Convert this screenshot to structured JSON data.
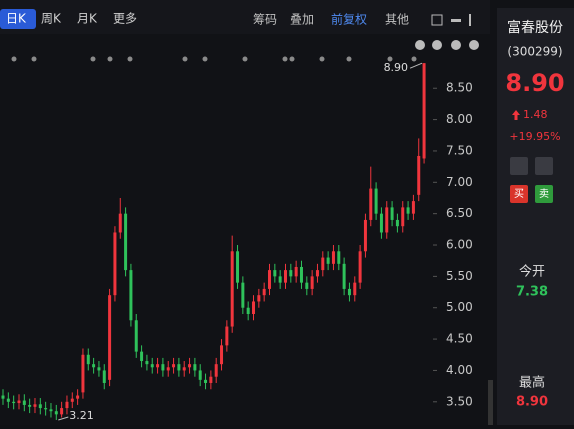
{
  "header": {
    "tabs": [
      "日K",
      "周K",
      "月K",
      "更多"
    ],
    "tools": [
      "筹码",
      "叠加",
      "前复权",
      "其他"
    ]
  },
  "sidebar": {
    "name": "富春股份",
    "code": "(300299)",
    "price": "8.90",
    "change": "1.48",
    "change_pct": "+19.95%",
    "buy": "买",
    "sell": "卖",
    "open_label": "今开",
    "open": "7.38",
    "high_label": "最高",
    "high": "8.90"
  },
  "chart_data": {
    "type": "candlestick",
    "up_color": "#f0353d",
    "down_color": "#2fc25b",
    "grid": false,
    "ylim": [
      3.13,
      9.03
    ],
    "yticks": [
      {
        "value": 3.5,
        "label": "3.50"
      },
      {
        "value": 4,
        "label": "4.00"
      },
      {
        "value": 4.5,
        "label": "4.50"
      },
      {
        "value": 5,
        "label": "5.00"
      },
      {
        "value": 5.5,
        "label": "5.50"
      },
      {
        "value": 6,
        "label": "6.00"
      },
      {
        "value": 6.5,
        "label": "6.50"
      },
      {
        "value": 7,
        "label": "7.00"
      },
      {
        "value": 7.5,
        "label": "7.50"
      },
      {
        "value": 8,
        "label": "8.00"
      },
      {
        "value": 8.5,
        "label": "8.50"
      }
    ],
    "open": [
      3.6,
      3.55,
      3.5,
      3.48,
      3.52,
      3.45,
      3.42,
      3.46,
      3.4,
      3.38,
      3.35,
      3.3,
      3.4,
      3.5,
      3.55,
      3.65,
      4.25,
      4.1,
      4.05,
      4.0,
      3.85,
      5.2,
      6.2,
      6.5,
      5.6,
      4.8,
      4.3,
      4.15,
      4.1,
      4.05,
      4.1,
      4.0,
      4.05,
      4.1,
      4.0,
      4.05,
      4.1,
      4.0,
      3.85,
      3.8,
      3.9,
      4.1,
      4.4,
      4.7,
      5.9,
      5.4,
      5.0,
      4.9,
      5.1,
      5.2,
      5.3,
      5.6,
      5.5,
      5.4,
      5.6,
      5.5,
      5.65,
      5.4,
      5.3,
      5.5,
      5.6,
      5.8,
      5.7,
      5.9,
      5.7,
      5.3,
      5.2,
      5.4,
      5.9,
      6.4,
      6.9,
      6.5,
      6.2,
      6.6,
      6.4,
      6.3,
      6.6,
      6.5,
      6.8,
      7.38
    ],
    "high": [
      3.7,
      3.65,
      3.6,
      3.62,
      3.62,
      3.55,
      3.56,
      3.56,
      3.5,
      3.48,
      3.45,
      3.5,
      3.6,
      3.65,
      3.7,
      4.35,
      4.35,
      4.2,
      4.15,
      4.1,
      5.3,
      6.3,
      6.75,
      6.6,
      5.7,
      4.9,
      4.4,
      4.25,
      4.2,
      4.2,
      4.2,
      4.15,
      4.2,
      4.2,
      4.15,
      4.2,
      4.2,
      4.1,
      3.95,
      4.0,
      4.2,
      4.5,
      4.8,
      6.15,
      6.0,
      5.5,
      5.1,
      5.2,
      5.3,
      5.4,
      5.7,
      5.7,
      5.6,
      5.7,
      5.7,
      5.75,
      5.75,
      5.5,
      5.6,
      5.7,
      5.9,
      5.9,
      6.0,
      6.0,
      5.8,
      5.4,
      5.5,
      6.0,
      6.5,
      7.25,
      7.0,
      6.6,
      6.7,
      6.7,
      6.5,
      6.7,
      6.7,
      6.8,
      7.7,
      8.9
    ],
    "low": [
      3.45,
      3.4,
      3.38,
      3.38,
      3.35,
      3.32,
      3.32,
      3.3,
      3.28,
      3.25,
      3.21,
      3.25,
      3.3,
      3.4,
      3.45,
      3.55,
      4.0,
      3.95,
      3.9,
      3.7,
      3.75,
      5.1,
      6.1,
      5.5,
      4.7,
      4.2,
      4.05,
      4.0,
      3.95,
      3.95,
      3.9,
      3.9,
      3.95,
      3.9,
      3.9,
      3.95,
      3.9,
      3.75,
      3.7,
      3.7,
      3.8,
      4.0,
      4.3,
      4.6,
      5.3,
      4.9,
      4.8,
      4.8,
      5.0,
      5.1,
      5.2,
      5.4,
      5.3,
      5.3,
      5.4,
      5.4,
      5.3,
      5.2,
      5.2,
      5.4,
      5.5,
      5.6,
      5.6,
      5.6,
      5.2,
      5.1,
      5.1,
      5.3,
      5.8,
      6.3,
      6.4,
      6.1,
      6.1,
      6.3,
      6.2,
      6.2,
      6.4,
      6.4,
      6.7,
      7.3
    ],
    "close": [
      3.55,
      3.5,
      3.48,
      3.52,
      3.45,
      3.42,
      3.46,
      3.4,
      3.38,
      3.35,
      3.3,
      3.4,
      3.5,
      3.55,
      3.6,
      4.25,
      4.1,
      4.05,
      4.0,
      3.8,
      5.2,
      6.2,
      6.5,
      5.6,
      4.8,
      4.3,
      4.15,
      4.1,
      4.05,
      4.1,
      4.0,
      4.05,
      4.1,
      4.0,
      4.05,
      4.1,
      4.0,
      3.85,
      3.8,
      3.9,
      4.1,
      4.4,
      4.7,
      5.9,
      5.4,
      5.0,
      4.9,
      5.1,
      5.2,
      5.3,
      5.6,
      5.5,
      5.4,
      5.6,
      5.5,
      5.65,
      5.4,
      5.3,
      5.5,
      5.6,
      5.8,
      5.7,
      5.9,
      5.7,
      5.3,
      5.2,
      5.4,
      5.9,
      6.4,
      6.9,
      6.5,
      6.2,
      6.6,
      6.4,
      6.3,
      6.6,
      6.5,
      6.7,
      7.42,
      8.9
    ],
    "annotations": [
      {
        "value": 8.9,
        "label": "8.90"
      },
      {
        "value": 3.21,
        "label": "3.21"
      }
    ]
  }
}
